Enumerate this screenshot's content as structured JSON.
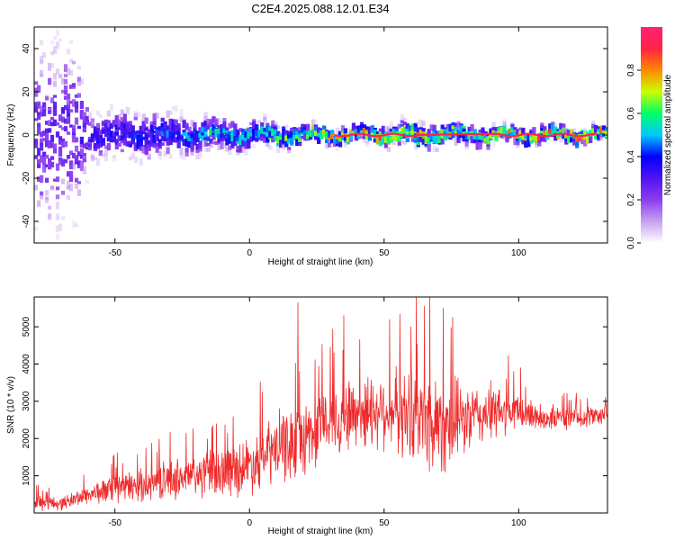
{
  "title": "C2E4.2025.088.12.01.E34",
  "chart_data": [
    {
      "type": "heatmap",
      "xlabel": "Height of straight line (km)",
      "ylabel": "Frequency (Hz)",
      "xlim": [
        -80,
        133
      ],
      "ylim": [
        -50,
        50
      ],
      "xticks": [
        -50,
        0,
        50,
        100
      ],
      "yticks": [
        -40,
        -20,
        0,
        20,
        40
      ],
      "ridge_frequency_hz": 0,
      "colorbar": {
        "label": "Normalized spectral amplitude",
        "range": [
          0,
          1
        ],
        "ticks": [
          "0.0",
          "0.2",
          "0.4",
          "0.6",
          "0.8"
        ],
        "colors": [
          "#ffffff",
          "#c8a0f0",
          "#8c3cf0",
          "#5014f0",
          "#0000ff",
          "#00c8ff",
          "#00ff66",
          "#c8ff00",
          "#ff8800",
          "#ff2244",
          "#ff2277"
        ]
      },
      "amplitude_profile": [
        {
          "x": -80,
          "amplitude": 0.3,
          "spread_hz": 45
        },
        {
          "x": -65,
          "amplitude": 0.3,
          "spread_hz": 45
        },
        {
          "x": -60,
          "amplitude": 0.35,
          "spread_hz": 12
        },
        {
          "x": -30,
          "amplitude": 0.45,
          "spread_hz": 10
        },
        {
          "x": -15,
          "amplitude": 0.55,
          "spread_hz": 7
        },
        {
          "x": 0,
          "amplitude": 0.55,
          "spread_hz": 6
        },
        {
          "x": 20,
          "amplitude": 0.7,
          "spread_hz": 4
        },
        {
          "x": 40,
          "amplitude": 0.85,
          "spread_hz": 3
        },
        {
          "x": 60,
          "amplitude": 0.8,
          "spread_hz": 5
        },
        {
          "x": 80,
          "amplitude": 0.7,
          "spread_hz": 4
        },
        {
          "x": 100,
          "amplitude": 0.85,
          "spread_hz": 3
        },
        {
          "x": 133,
          "amplitude": 0.9,
          "spread_hz": 3
        }
      ]
    },
    {
      "type": "line",
      "xlabel": "Height of straight line (km)",
      "ylabel": "SNR (10 * v/v)",
      "xlim": [
        -80,
        133
      ],
      "ylim": [
        0,
        5800
      ],
      "xticks": [
        -50,
        0,
        50,
        100
      ],
      "yticks": [
        1000,
        2000,
        3000,
        4000,
        5000
      ],
      "color": "#ee2a2a",
      "series": [
        {
          "x": [
            -80,
            -70,
            -60,
            -50,
            -40,
            -30,
            -20,
            -10,
            0,
            10,
            20,
            30,
            40,
            50,
            60,
            70,
            80,
            90,
            100,
            110,
            120,
            133
          ],
          "baseline": [
            300,
            250,
            500,
            650,
            750,
            900,
            1000,
            1100,
            1300,
            1700,
            2000,
            2500,
            2700,
            2800,
            2600,
            2400,
            2500,
            2700,
            2700,
            2550,
            2550,
            2650
          ],
          "amplitude": [
            250,
            200,
            300,
            450,
            500,
            600,
            700,
            800,
            900,
            1100,
            1200,
            1100,
            1200,
            1200,
            1400,
            1700,
            1100,
            900,
            600,
            400,
            350,
            300
          ]
        }
      ],
      "peaks": [
        {
          "x": 18,
          "y": 5650
        },
        {
          "x": 35,
          "y": 5300
        },
        {
          "x": 60,
          "y": 5000
        },
        {
          "x": 62,
          "y": 5800
        },
        {
          "x": 65,
          "y": 5550
        },
        {
          "x": 67,
          "y": 5800
        },
        {
          "x": 72,
          "y": 5500
        }
      ]
    }
  ]
}
